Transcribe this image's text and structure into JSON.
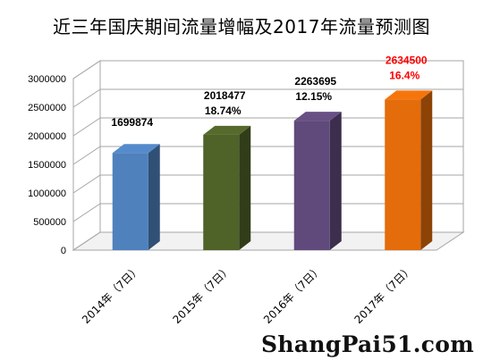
{
  "chart_data": {
    "type": "bar",
    "title": "近三年国庆期间流量增幅及2017年流量预测图",
    "categories": [
      "2014年（7日）",
      "2015年（7日）",
      "2016年（7日）",
      "2017年（7日）"
    ],
    "values": [
      1699874,
      2018477,
      2263695,
      2634500
    ],
    "value_labels": [
      "1699874",
      "2018477",
      "2263695",
      "2634500"
    ],
    "growth_labels": [
      "",
      "18.74%",
      "12.15%",
      "16.4%"
    ],
    "bar_colors": [
      "#4F81BD",
      "#4F6228",
      "#604A7B",
      "#E46C0A"
    ],
    "highlight_color": "#FF0000",
    "highlight_index": 3,
    "ylim": [
      0,
      3000000
    ],
    "yticks": [
      "0",
      "500000",
      "1000000",
      "1500000",
      "2000000",
      "2500000",
      "3000000"
    ],
    "grid": true,
    "legend": "none"
  },
  "watermark": "ShangPai51.com"
}
